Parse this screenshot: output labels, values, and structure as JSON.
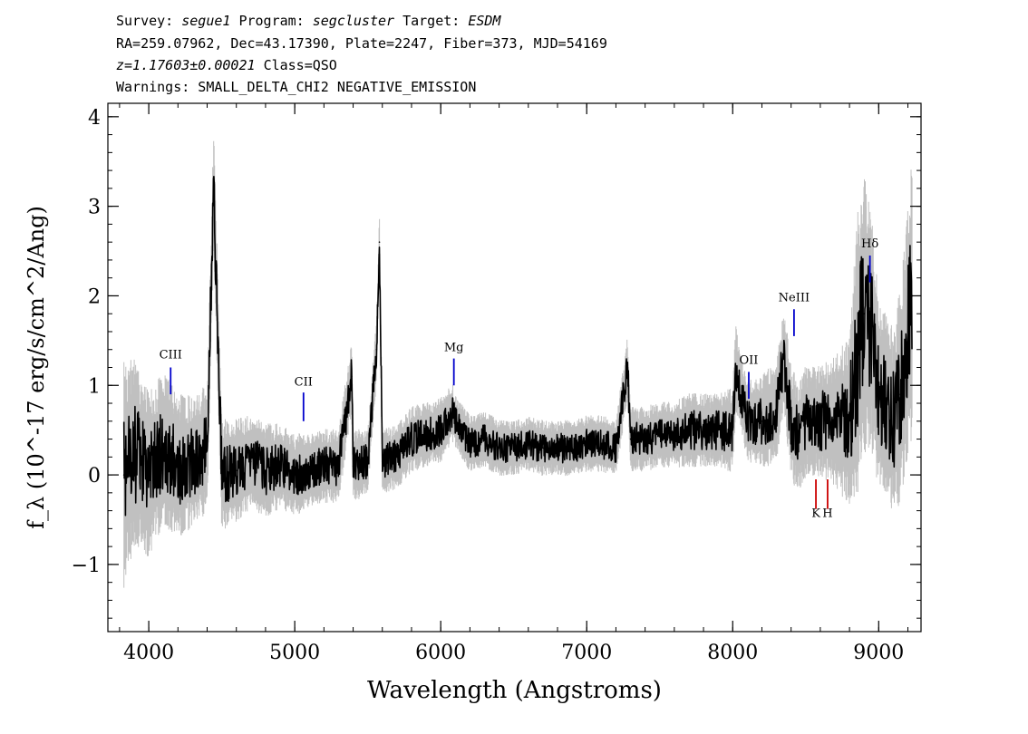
{
  "header": {
    "survey_label": "Survey:",
    "survey": "segue1",
    "program_label": "Program:",
    "program": "segcluster",
    "target_label": "Target:",
    "target": "ESDM",
    "coords": "RA=259.07962, Dec=43.17390, Plate=2247, Fiber=373, MJD=54169",
    "redshift": "z=1.17603±0.00021",
    "class": "Class=QSO",
    "warnings": "Warnings: SMALL_DELTA_CHI2 NEGATIVE_EMISSION"
  },
  "chart_data": {
    "type": "line",
    "xlabel": "Wavelength (Angstroms)",
    "ylabel": "f_λ (10^-17 erg/s/cm^2/Ang)",
    "xlim": [
      3720,
      9290
    ],
    "ylim": [
      -1.75,
      4.15
    ],
    "xticks": [
      4000,
      5000,
      6000,
      7000,
      8000,
      9000
    ],
    "yticks": [
      -1,
      0,
      1,
      2,
      3,
      4
    ],
    "grid": false,
    "series": [
      {
        "role": "flux",
        "color": "#000000",
        "x": [
          3830,
          3900,
          4000,
          4100,
          4200,
          4300,
          4400,
          4445,
          4500,
          4600,
          4700,
          4800,
          4900,
          5000,
          5100,
          5200,
          5300,
          5390,
          5400,
          5500,
          5560,
          5580,
          5600,
          5700,
          5800,
          5900,
          6000,
          6080,
          6100,
          6200,
          6300,
          6400,
          6500,
          6600,
          6700,
          6800,
          6900,
          7000,
          7100,
          7200,
          7280,
          7300,
          7400,
          7500,
          7600,
          7700,
          7800,
          7900,
          8000,
          8020,
          8100,
          8200,
          8300,
          8350,
          8400,
          8450,
          8500,
          8600,
          8700,
          8800,
          8850,
          8900,
          8950,
          9000,
          9050,
          9100,
          9150,
          9200,
          9230
        ],
        "y": [
          0.0,
          0.25,
          0.0,
          0.3,
          0.1,
          0.15,
          0.3,
          3.2,
          0.0,
          0.05,
          0.15,
          0.05,
          0.1,
          0.0,
          0.05,
          0.1,
          0.1,
          1.1,
          0.1,
          0.15,
          1.4,
          2.6,
          0.15,
          0.2,
          0.4,
          0.45,
          0.5,
          0.7,
          0.6,
          0.35,
          0.4,
          0.3,
          0.3,
          0.35,
          0.3,
          0.3,
          0.3,
          0.35,
          0.35,
          0.3,
          1.2,
          0.4,
          0.4,
          0.45,
          0.45,
          0.5,
          0.5,
          0.5,
          0.5,
          1.2,
          0.6,
          0.6,
          0.7,
          1.3,
          0.6,
          0.4,
          0.6,
          0.6,
          0.6,
          0.6,
          1.3,
          1.8,
          1.6,
          0.9,
          0.8,
          0.6,
          0.9,
          1.6,
          2.0
        ]
      },
      {
        "role": "error",
        "color": "#c0c0c0",
        "x": [
          3830,
          3900,
          4000,
          4100,
          4200,
          4300,
          4400,
          4500,
          4600,
          4700,
          4800,
          4900,
          5000,
          5100,
          5200,
          5300,
          5400,
          5500,
          5600,
          5700,
          5800,
          5900,
          6000,
          6100,
          6200,
          6300,
          6400,
          6500,
          6600,
          6700,
          6800,
          6900,
          7000,
          7100,
          7200,
          7300,
          7400,
          7500,
          7600,
          7700,
          7800,
          7900,
          8000,
          8100,
          8200,
          8300,
          8400,
          8500,
          8600,
          8700,
          8800,
          8850,
          8900,
          8950,
          9000,
          9100,
          9200,
          9230
        ],
        "y": [
          1.2,
          1.0,
          0.9,
          0.8,
          0.8,
          0.7,
          0.7,
          0.6,
          0.55,
          0.5,
          0.5,
          0.45,
          0.45,
          0.4,
          0.4,
          0.4,
          0.4,
          0.35,
          0.35,
          0.35,
          0.35,
          0.35,
          0.35,
          0.3,
          0.3,
          0.3,
          0.3,
          0.3,
          0.3,
          0.3,
          0.3,
          0.3,
          0.3,
          0.3,
          0.3,
          0.35,
          0.35,
          0.35,
          0.35,
          0.4,
          0.4,
          0.4,
          0.45,
          0.45,
          0.5,
          0.55,
          0.6,
          0.6,
          0.6,
          0.7,
          0.9,
          1.5,
          1.5,
          1.3,
          1.0,
          1.0,
          1.3,
          1.5
        ]
      }
    ],
    "annotations": [
      {
        "label": "CIII",
        "x": 4150,
        "y_line": [
          0.9,
          1.2
        ],
        "y_label": 1.3,
        "color": "#0000cc"
      },
      {
        "label": "CII",
        "x": 5060,
        "y_line": [
          0.6,
          0.92
        ],
        "y_label": 1.0,
        "color": "#0000cc"
      },
      {
        "label": "Mg",
        "x": 6090,
        "y_line": [
          1.0,
          1.3
        ],
        "y_label": 1.38,
        "color": "#0000cc"
      },
      {
        "label": "OII",
        "x": 8110,
        "y_line": [
          0.85,
          1.15
        ],
        "y_label": 1.24,
        "color": "#0000cc"
      },
      {
        "label": "NeIII",
        "x": 8420,
        "y_line": [
          1.55,
          1.85
        ],
        "y_label": 1.94,
        "color": "#0000cc"
      },
      {
        "label": "Hδ",
        "x": 8940,
        "y_line": [
          2.15,
          2.45
        ],
        "y_label": 2.54,
        "color": "#0000cc"
      },
      {
        "label": "K",
        "x": 8570,
        "y_line": [
          -0.38,
          -0.05
        ],
        "y_label": -0.47,
        "color": "#cc0000"
      },
      {
        "label": "H",
        "x": 8650,
        "y_line": [
          -0.38,
          -0.05
        ],
        "y_label": -0.47,
        "color": "#cc0000"
      }
    ]
  }
}
